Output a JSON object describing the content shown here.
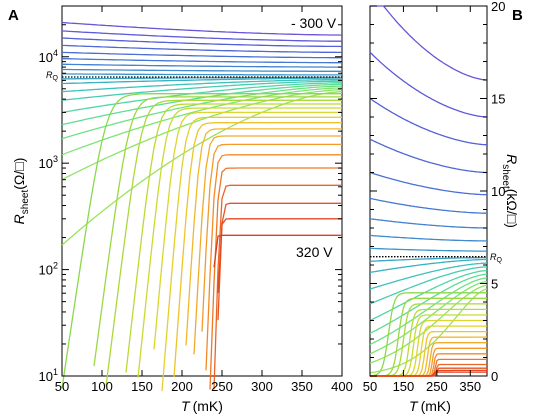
{
  "chart_data": [
    {
      "panel": "A",
      "type": "line",
      "xlabel_italic": "T",
      "xlabel_unit": "(mK)",
      "ylabel_main": "R",
      "ylabel_sub": "sheet",
      "ylabel_unit": "(Ω/□)",
      "xlim": [
        50,
        400
      ],
      "ylim": [
        10,
        30000
      ],
      "yscale": "log",
      "xticks": [
        50,
        100,
        150,
        200,
        250,
        300,
        350,
        400
      ],
      "yticks": [
        {
          "value": 10,
          "base": "10",
          "exp": "1"
        },
        {
          "value": 100,
          "base": "10",
          "exp": "2"
        },
        {
          "value": 1000,
          "base": "10",
          "exp": "3"
        },
        {
          "value": 10000,
          "base": "10",
          "exp": "4"
        }
      ],
      "annotations": {
        "top_series": "- 300 V",
        "bottom_series": "320 V",
        "rq_label": "R",
        "rq_sub": "Q"
      },
      "rq_value": 6450,
      "grid": false,
      "insulating_curves": [
        {
          "r50": 21000,
          "r400": 16000,
          "color": "#6a55d8"
        },
        {
          "r50": 17500,
          "r400": 14000,
          "color": "#5e5ad8"
        },
        {
          "r50": 15000,
          "r400": 12500,
          "color": "#5560d8"
        },
        {
          "r50": 12800,
          "r400": 11000,
          "color": "#4f68d6"
        },
        {
          "r50": 11000,
          "r400": 9800,
          "color": "#4a70d4"
        },
        {
          "r50": 9600,
          "r400": 8800,
          "color": "#4679d2"
        },
        {
          "r50": 8500,
          "r400": 8000,
          "color": "#4282d0"
        },
        {
          "r50": 7600,
          "r400": 7300,
          "color": "#3f8bcd"
        },
        {
          "r50": 6900,
          "r400": 6750,
          "color": "#3c95ca"
        }
      ],
      "metallic_curves": [
        {
          "r50": 6200,
          "r400": 6400,
          "color": "#3aa3c6"
        },
        {
          "r50": 5600,
          "r400": 6300,
          "color": "#39b1c2"
        },
        {
          "r50": 4700,
          "r400": 6100,
          "color": "#3ec0bc"
        },
        {
          "r50": 3900,
          "r400": 5900,
          "color": "#47ccb2"
        },
        {
          "r50": 3000,
          "r400": 5700,
          "color": "#52d6a4"
        },
        {
          "r50": 2300,
          "r400": 5500,
          "color": "#5edd94"
        },
        {
          "r50": 1700,
          "r400": 5300,
          "color": "#6ee283"
        },
        {
          "r50": 1200,
          "r400": 5100,
          "color": "#7ee474"
        },
        {
          "r50": 700,
          "r400": 4900,
          "color": "#8de466"
        },
        {
          "r50": 170,
          "r400": 4700,
          "color": "#99e35c"
        }
      ],
      "superconducting_curves": [
        {
          "tc": 105,
          "rn": 4500,
          "w": 95,
          "color": "#8bd84c"
        },
        {
          "tc": 135,
          "rn": 4200,
          "w": 85,
          "color": "#9cd842"
        },
        {
          "tc": 150,
          "rn": 3900,
          "w": 80,
          "color": "#abd93a"
        },
        {
          "tc": 168,
          "rn": 3600,
          "w": 72,
          "color": "#bcd935"
        },
        {
          "tc": 180,
          "rn": 3300,
          "w": 66,
          "color": "#cbd932"
        },
        {
          "tc": 192,
          "rn": 3000,
          "w": 58,
          "color": "#d9d62f"
        },
        {
          "tc": 203,
          "rn": 2700,
          "w": 52,
          "color": "#e4cf2e"
        },
        {
          "tc": 213,
          "rn": 2400,
          "w": 46,
          "color": "#ecc42d"
        },
        {
          "tc": 222,
          "rn": 2100,
          "w": 40,
          "color": "#f0b82c"
        },
        {
          "tc": 230,
          "rn": 1800,
          "w": 35,
          "color": "#f2aa2c"
        },
        {
          "tc": 236,
          "rn": 1500,
          "w": 30,
          "color": "#f39a2b"
        },
        {
          "tc": 241,
          "rn": 1200,
          "w": 26,
          "color": "#f28a29"
        },
        {
          "tc": 245,
          "rn": 900,
          "w": 23,
          "color": "#ef7726"
        },
        {
          "tc": 248,
          "rn": 620,
          "w": 20,
          "color": "#ec6424"
        },
        {
          "tc": 249,
          "rn": 420,
          "w": 18,
          "color": "#e85322"
        },
        {
          "tc": 247,
          "rn": 300,
          "w": 16,
          "color": "#e34820"
        },
        {
          "tc": 240,
          "rn": 210,
          "w": 14,
          "color": "#dc3e1e"
        }
      ]
    },
    {
      "panel": "B",
      "type": "line",
      "xlabel_italic": "T",
      "xlabel_unit": "(mK)",
      "ylabel_main": "R",
      "ylabel_sub": "sheet",
      "ylabel_unit": "(kΩ/□)",
      "xlim": [
        50,
        400
      ],
      "ylim": [
        0,
        20
      ],
      "yscale": "linear",
      "xticks": [
        50,
        150,
        250,
        350
      ],
      "yticks": [
        0,
        5,
        10,
        15,
        20
      ],
      "annotations": {
        "rq_label": "R",
        "rq_sub": "Q"
      },
      "rq_value": 6.45,
      "grid": false,
      "curves": [
        {
          "r50": 21.0,
          "r400": 16.0,
          "color": "#6a55d8"
        },
        {
          "r50": 17.5,
          "r400": 14.0,
          "color": "#5e5ad8"
        },
        {
          "r50": 15.0,
          "r400": 12.5,
          "color": "#5560d8"
        },
        {
          "r50": 12.8,
          "r400": 11.0,
          "color": "#4f68d6"
        },
        {
          "r50": 11.0,
          "r400": 9.8,
          "color": "#4a70d4"
        },
        {
          "r50": 9.6,
          "r400": 8.8,
          "color": "#4679d2"
        },
        {
          "r50": 8.5,
          "r400": 8.0,
          "color": "#4282d0"
        },
        {
          "r50": 7.6,
          "r400": 7.3,
          "color": "#3f8bcd"
        },
        {
          "r50": 6.9,
          "r400": 6.75,
          "color": "#3c95ca"
        },
        {
          "r50": 6.2,
          "r400": 6.4,
          "color": "#3aa3c6"
        },
        {
          "r50": 5.6,
          "r400": 6.3,
          "color": "#39b1c2"
        },
        {
          "r50": 4.7,
          "r400": 6.1,
          "color": "#3ec0bc"
        },
        {
          "r50": 3.9,
          "r400": 5.9,
          "color": "#47ccb2"
        },
        {
          "r50": 3.0,
          "r400": 5.7,
          "color": "#52d6a4"
        },
        {
          "r50": 2.3,
          "r400": 5.5,
          "color": "#5edd94"
        },
        {
          "r50": 1.7,
          "r400": 5.3,
          "color": "#6ee283"
        },
        {
          "r50": 1.2,
          "r400": 5.1,
          "color": "#7ee474"
        },
        {
          "r50": 0.7,
          "r400": 4.9,
          "color": "#8de466"
        },
        {
          "r50": 0.17,
          "r400": 4.7,
          "color": "#99e35c"
        }
      ],
      "superconducting_curves": [
        {
          "tc": 105,
          "rn": 4.5,
          "w": 95,
          "color": "#8bd84c"
        },
        {
          "tc": 135,
          "rn": 4.2,
          "w": 85,
          "color": "#9cd842"
        },
        {
          "tc": 150,
          "rn": 3.9,
          "w": 80,
          "color": "#abd93a"
        },
        {
          "tc": 168,
          "rn": 3.6,
          "w": 72,
          "color": "#bcd935"
        },
        {
          "tc": 180,
          "rn": 3.3,
          "w": 66,
          "color": "#cbd932"
        },
        {
          "tc": 192,
          "rn": 3.0,
          "w": 58,
          "color": "#d9d62f"
        },
        {
          "tc": 203,
          "rn": 2.7,
          "w": 52,
          "color": "#e4cf2e"
        },
        {
          "tc": 213,
          "rn": 2.4,
          "w": 46,
          "color": "#ecc42d"
        },
        {
          "tc": 222,
          "rn": 2.1,
          "w": 40,
          "color": "#f0b82c"
        },
        {
          "tc": 230,
          "rn": 1.8,
          "w": 35,
          "color": "#f2aa2c"
        },
        {
          "tc": 236,
          "rn": 1.5,
          "w": 30,
          "color": "#f39a2b"
        },
        {
          "tc": 241,
          "rn": 1.2,
          "w": 26,
          "color": "#f28a29"
        },
        {
          "tc": 245,
          "rn": 0.9,
          "w": 23,
          "color": "#ef7726"
        },
        {
          "tc": 248,
          "rn": 0.62,
          "w": 20,
          "color": "#ec6424"
        },
        {
          "tc": 249,
          "rn": 0.42,
          "w": 18,
          "color": "#e85322"
        },
        {
          "tc": 247,
          "rn": 0.3,
          "w": 16,
          "color": "#e34820"
        },
        {
          "tc": 240,
          "rn": 0.21,
          "w": 14,
          "color": "#dc3e1e"
        }
      ]
    }
  ]
}
